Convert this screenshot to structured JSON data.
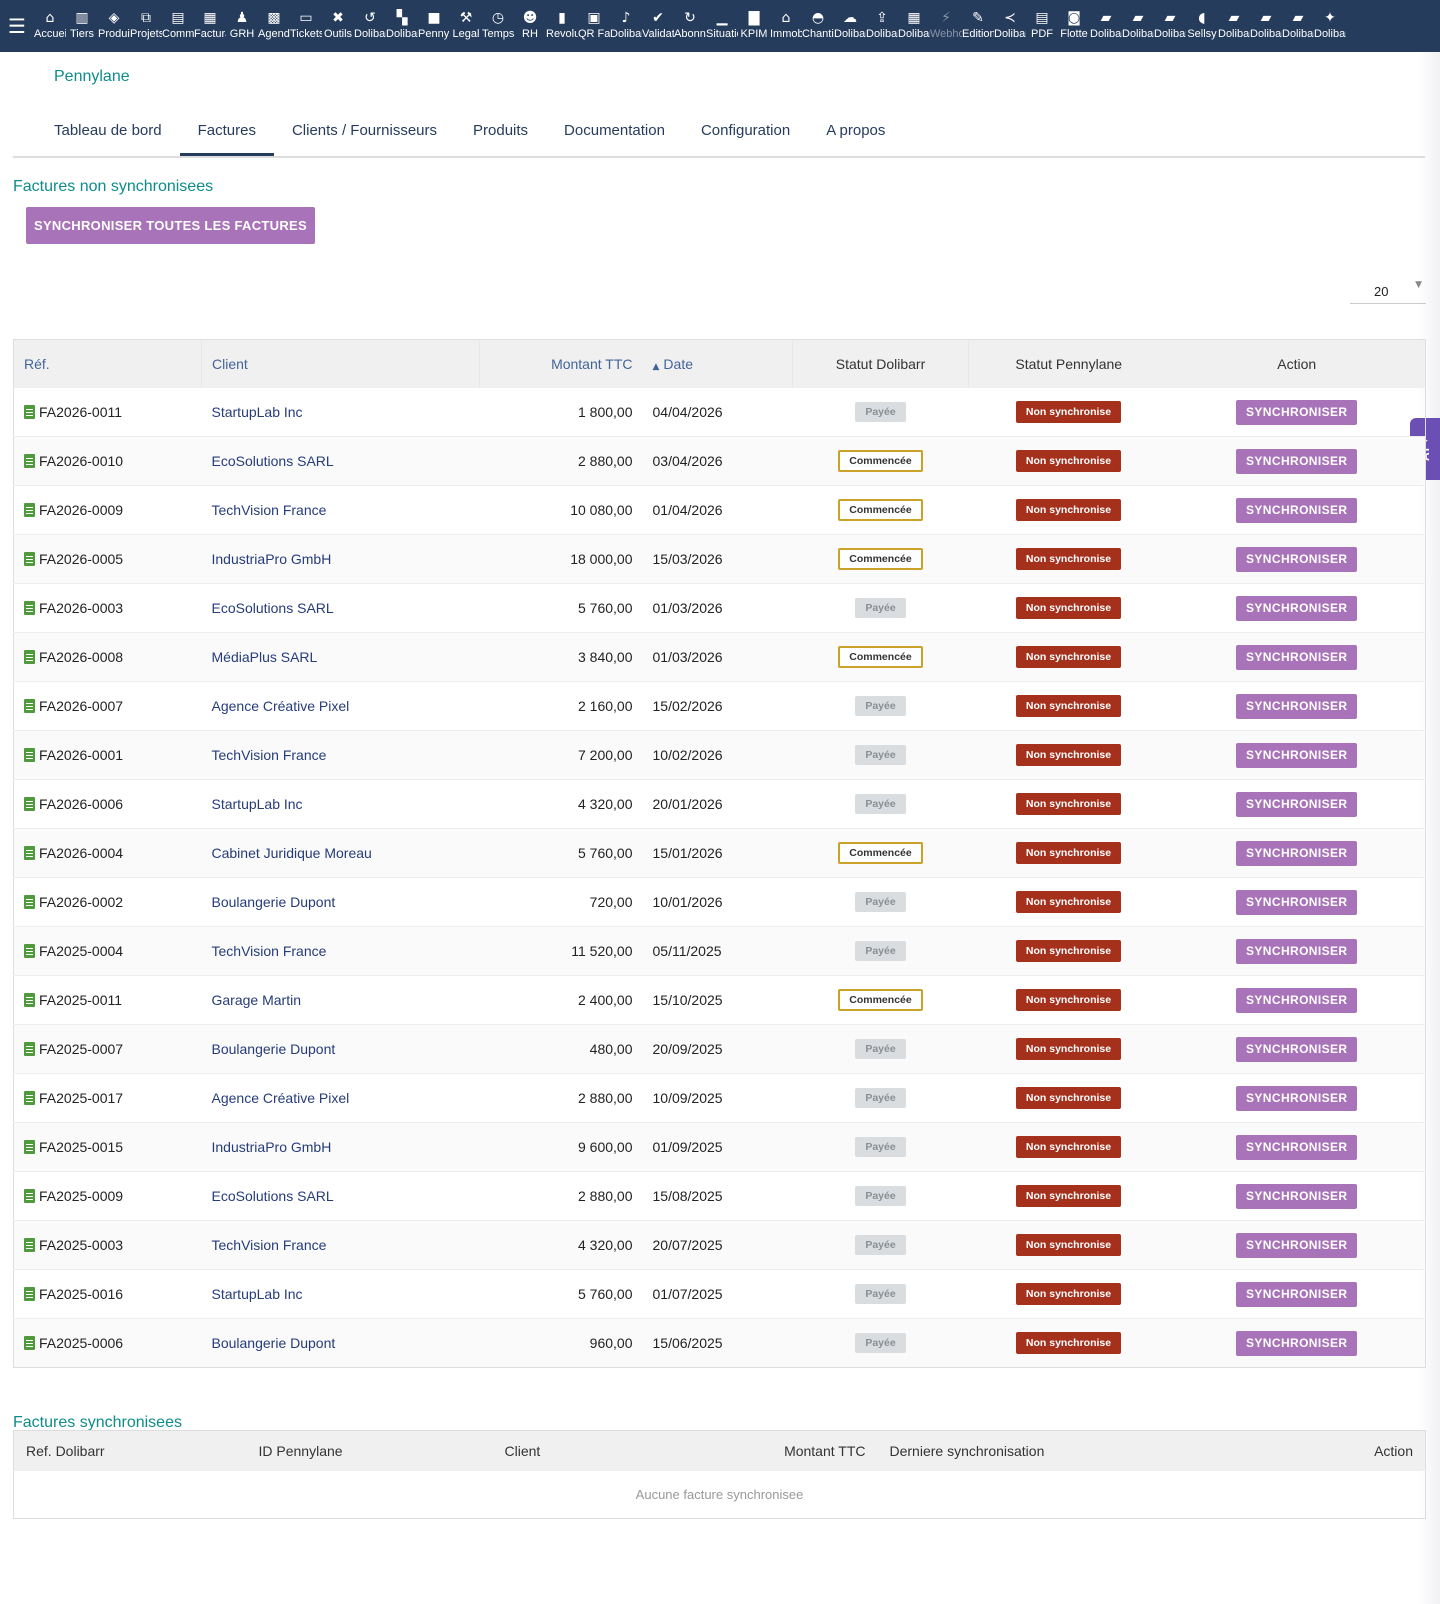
{
  "topbar": {
    "modules": [
      {
        "label": "Accueil",
        "icon": "home-icon",
        "glyph": "⌂"
      },
      {
        "label": "Tiers",
        "icon": "building-icon",
        "glyph": "▥"
      },
      {
        "label": "Produits",
        "icon": "cube-icon",
        "glyph": "◈"
      },
      {
        "label": "Projets",
        "icon": "project-icon",
        "glyph": "⧉"
      },
      {
        "label": "Commercial",
        "icon": "briefcase-icon",
        "glyph": "▤"
      },
      {
        "label": "Facturation",
        "icon": "invoice-icon",
        "glyph": "▦"
      },
      {
        "label": "GRH",
        "icon": "user-tie-icon",
        "glyph": "♟"
      },
      {
        "label": "Agenda",
        "icon": "calendar-icon",
        "glyph": "▩"
      },
      {
        "label": "Tickets",
        "icon": "ticket-icon",
        "glyph": "▭"
      },
      {
        "label": "Outils",
        "icon": "tools-icon",
        "glyph": "✖"
      },
      {
        "label": "Dolibarr",
        "icon": "undo-icon",
        "glyph": "↺"
      },
      {
        "label": "Dolibarr",
        "icon": "stack-icon",
        "glyph": "▚"
      },
      {
        "label": "Pennylane",
        "icon": "square-icon",
        "glyph": "■"
      },
      {
        "label": "Legal",
        "icon": "gavel-icon",
        "glyph": "⚒"
      },
      {
        "label": "Temps",
        "icon": "clock-icon",
        "glyph": "◷"
      },
      {
        "label": "RH",
        "icon": "users-icon",
        "glyph": "☻"
      },
      {
        "label": "Revolut",
        "icon": "bank-icon",
        "glyph": "▮"
      },
      {
        "label": "QR Facture",
        "icon": "qrcode-icon",
        "glyph": "▣"
      },
      {
        "label": "Dolibarr",
        "icon": "bell-icon",
        "glyph": "♪"
      },
      {
        "label": "Validation",
        "icon": "check-double-icon",
        "glyph": "✔"
      },
      {
        "label": "Abonnements",
        "icon": "sync-icon",
        "glyph": "↻"
      },
      {
        "label": "Situations",
        "icon": "chart-icon",
        "glyph": "▁"
      },
      {
        "label": "KPIM",
        "icon": "bar-chart-icon",
        "glyph": "▇"
      },
      {
        "label": "Immobilier",
        "icon": "house-icon",
        "glyph": "⌂"
      },
      {
        "label": "Chantier",
        "icon": "hardhat-icon",
        "glyph": "◓"
      },
      {
        "label": "Dolibarr",
        "icon": "cloud-icon",
        "glyph": "☁"
      },
      {
        "label": "Dolibarr",
        "icon": "upload-icon",
        "glyph": "⇪"
      },
      {
        "label": "Dolibarr",
        "icon": "office-building-icon",
        "glyph": "▦"
      },
      {
        "label": "Webhooks",
        "icon": "plug-icon",
        "glyph": "⚡",
        "dim": true
      },
      {
        "label": "Edition",
        "icon": "edit-icon",
        "glyph": "✎"
      },
      {
        "label": "Dolibarr",
        "icon": "share-icon",
        "glyph": "≺"
      },
      {
        "label": "PDF",
        "icon": "pdf-icon",
        "glyph": "▤"
      },
      {
        "label": "Flotte",
        "icon": "car-icon",
        "glyph": "◙"
      },
      {
        "label": "Dolibarr",
        "icon": "note-icon",
        "glyph": "▰"
      },
      {
        "label": "Dolibarr",
        "icon": "note-icon",
        "glyph": "▰"
      },
      {
        "label": "Dolibarr",
        "icon": "note-icon",
        "glyph": "▰"
      },
      {
        "label": "Sellsy",
        "icon": "handshake-icon",
        "glyph": "◖"
      },
      {
        "label": "Dolibarr",
        "icon": "note-icon",
        "glyph": "▰"
      },
      {
        "label": "Dolibarr",
        "icon": "note-icon",
        "glyph": "▰"
      },
      {
        "label": "Dolibarr",
        "icon": "note-icon",
        "glyph": "▰"
      },
      {
        "label": "Dolibarr",
        "icon": "magic-wand-icon",
        "glyph": "✦"
      }
    ]
  },
  "module_title": "Pennylane",
  "tabs": [
    "Tableau de bord",
    "Factures",
    "Clients / Fournisseurs",
    "Produits",
    "Documentation",
    "Configuration",
    "A propos"
  ],
  "active_tab": 1,
  "unsynced": {
    "title": "Factures non synchronisees",
    "sync_all_label": "SYNCHRONISER TOUTES LES FACTURES",
    "per_page": "20",
    "headers": {
      "ref": "Réf.",
      "client": "Client",
      "amount": "Montant TTC",
      "date": "Date",
      "statut_dolibarr": "Statut Dolibarr",
      "statut_pennylane": "Statut Pennylane",
      "action": "Action"
    },
    "sync_label": "SYNCHRONISER",
    "rows": [
      {
        "ref": "FA2026-0011",
        "client": "StartupLab Inc",
        "amount": "1 800,00",
        "date": "04/04/2026",
        "status": "Payée",
        "status_type": "payee",
        "pl_status": "Non synchronise"
      },
      {
        "ref": "FA2026-0010",
        "client": "EcoSolutions SARL",
        "amount": "2 880,00",
        "date": "03/04/2026",
        "status": "Commencée",
        "status_type": "commencee",
        "pl_status": "Non synchronise"
      },
      {
        "ref": "FA2026-0009",
        "client": "TechVision France",
        "amount": "10 080,00",
        "date": "01/04/2026",
        "status": "Commencée",
        "status_type": "commencee",
        "pl_status": "Non synchronise"
      },
      {
        "ref": "FA2026-0005",
        "client": "IndustriaPro GmbH",
        "amount": "18 000,00",
        "date": "15/03/2026",
        "status": "Commencée",
        "status_type": "commencee",
        "pl_status": "Non synchronise"
      },
      {
        "ref": "FA2026-0003",
        "client": "EcoSolutions SARL",
        "amount": "5 760,00",
        "date": "01/03/2026",
        "status": "Payée",
        "status_type": "payee",
        "pl_status": "Non synchronise"
      },
      {
        "ref": "FA2026-0008",
        "client": "MédiaPlus SARL",
        "amount": "3 840,00",
        "date": "01/03/2026",
        "status": "Commencée",
        "status_type": "commencee",
        "pl_status": "Non synchronise"
      },
      {
        "ref": "FA2026-0007",
        "client": "Agence Créative Pixel",
        "amount": "2 160,00",
        "date": "15/02/2026",
        "status": "Payée",
        "status_type": "payee",
        "pl_status": "Non synchronise"
      },
      {
        "ref": "FA2026-0001",
        "client": "TechVision France",
        "amount": "7 200,00",
        "date": "10/02/2026",
        "status": "Payée",
        "status_type": "payee",
        "pl_status": "Non synchronise"
      },
      {
        "ref": "FA2026-0006",
        "client": "StartupLab Inc",
        "amount": "4 320,00",
        "date": "20/01/2026",
        "status": "Payée",
        "status_type": "payee",
        "pl_status": "Non synchronise"
      },
      {
        "ref": "FA2026-0004",
        "client": "Cabinet Juridique Moreau",
        "amount": "5 760,00",
        "date": "15/01/2026",
        "status": "Commencée",
        "status_type": "commencee",
        "pl_status": "Non synchronise"
      },
      {
        "ref": "FA2026-0002",
        "client": "Boulangerie Dupont",
        "amount": "720,00",
        "date": "10/01/2026",
        "status": "Payée",
        "status_type": "payee",
        "pl_status": "Non synchronise"
      },
      {
        "ref": "FA2025-0004",
        "client": "TechVision France",
        "amount": "11 520,00",
        "date": "05/11/2025",
        "status": "Payée",
        "status_type": "payee",
        "pl_status": "Non synchronise"
      },
      {
        "ref": "FA2025-0011",
        "client": "Garage Martin",
        "amount": "2 400,00",
        "date": "15/10/2025",
        "status": "Commencée",
        "status_type": "commencee",
        "pl_status": "Non synchronise"
      },
      {
        "ref": "FA2025-0007",
        "client": "Boulangerie Dupont",
        "amount": "480,00",
        "date": "20/09/2025",
        "status": "Payée",
        "status_type": "payee",
        "pl_status": "Non synchronise"
      },
      {
        "ref": "FA2025-0017",
        "client": "Agence Créative Pixel",
        "amount": "2 880,00",
        "date": "10/09/2025",
        "status": "Payée",
        "status_type": "payee",
        "pl_status": "Non synchronise"
      },
      {
        "ref": "FA2025-0015",
        "client": "IndustriaPro GmbH",
        "amount": "9 600,00",
        "date": "01/09/2025",
        "status": "Payée",
        "status_type": "payee",
        "pl_status": "Non synchronise"
      },
      {
        "ref": "FA2025-0009",
        "client": "EcoSolutions SARL",
        "amount": "2 880,00",
        "date": "15/08/2025",
        "status": "Payée",
        "status_type": "payee",
        "pl_status": "Non synchronise"
      },
      {
        "ref": "FA2025-0003",
        "client": "TechVision France",
        "amount": "4 320,00",
        "date": "20/07/2025",
        "status": "Payée",
        "status_type": "payee",
        "pl_status": "Non synchronise"
      },
      {
        "ref": "FA2025-0016",
        "client": "StartupLab Inc",
        "amount": "5 760,00",
        "date": "01/07/2025",
        "status": "Payée",
        "status_type": "payee",
        "pl_status": "Non synchronise"
      },
      {
        "ref": "FA2025-0006",
        "client": "Boulangerie Dupont",
        "amount": "960,00",
        "date": "15/06/2025",
        "status": "Payée",
        "status_type": "payee",
        "pl_status": "Non synchronise"
      }
    ]
  },
  "synced": {
    "title": "Factures synchronisees",
    "headers": {
      "ref": "Ref. Dolibarr",
      "pennylane_id": "ID Pennylane",
      "client": "Client",
      "amount": "Montant TTC",
      "last_sync": "Derniere synchronisation",
      "action": "Action"
    },
    "empty": "Aucune facture synchronisee"
  },
  "ai_tab": "AI",
  "colors": {
    "topbar": "#263c5c",
    "accent_teal": "#0e8c8a",
    "sync_button": "#a873b8",
    "non_sync_badge": "#a5301c",
    "commencee_border": "#c9a227",
    "ai_tab": "#6b4fb4"
  }
}
